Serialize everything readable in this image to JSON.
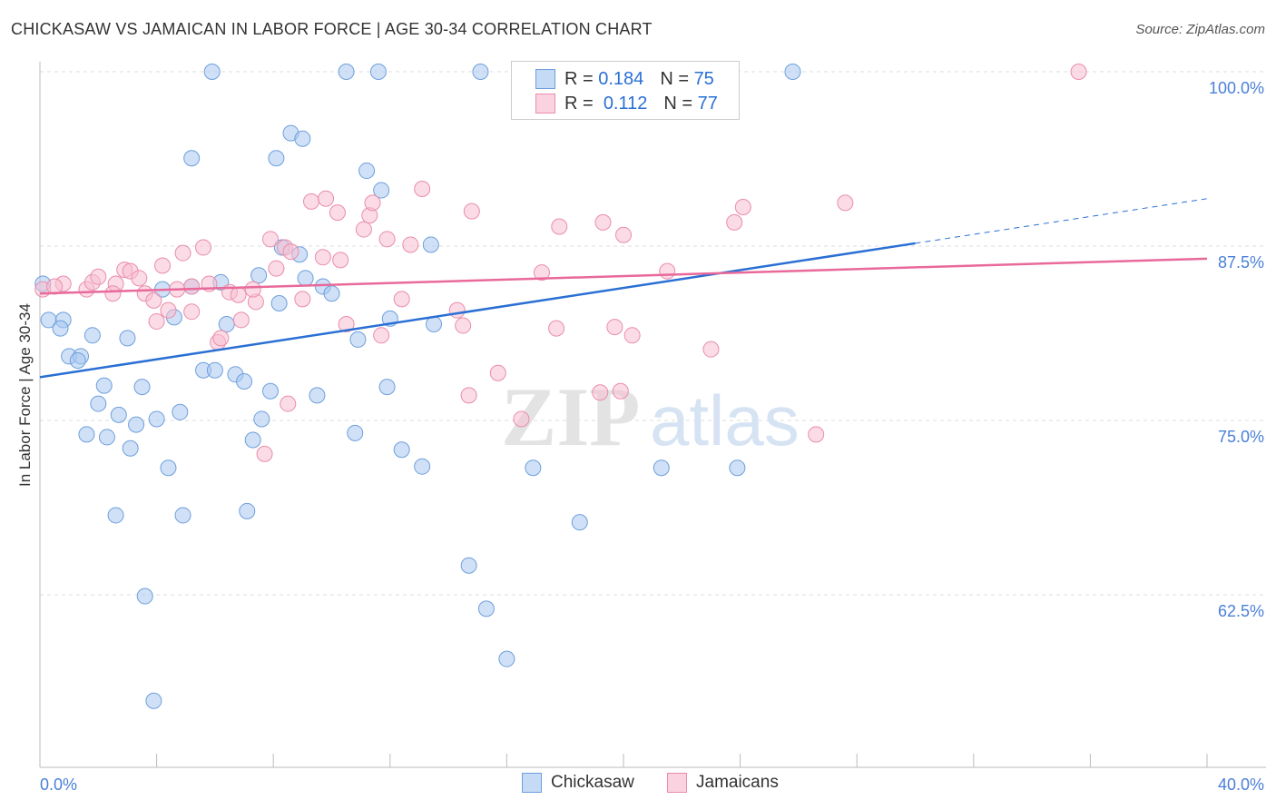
{
  "title": "CHICKASAW VS JAMAICAN IN LABOR FORCE | AGE 30-34 CORRELATION CHART",
  "source": "Source: ZipAtlas.com",
  "watermark": "ZIPatlas",
  "colors": {
    "blue_fill": "#a9c9f0",
    "blue_stroke": "#6e9fdc",
    "blue_line": "#2a6fd4",
    "pink_fill": "#f7bfd2",
    "pink_stroke": "#e98daa",
    "pink_line": "#e8699a",
    "tick": "#4a7fd8"
  },
  "legend": {
    "r_label": "R =",
    "n_label": "N =",
    "items": [
      {
        "name": "Chickasaw",
        "r": "0.184",
        "n": "75"
      },
      {
        "name": "Jamaicans",
        "r": "0.112",
        "n": "77"
      }
    ]
  },
  "chart_data": {
    "type": "scatter",
    "title": "CHICKASAW VS JAMAICAN IN LABOR FORCE | AGE 30-34 CORRELATION CHART",
    "xlabel": "",
    "ylabel": "In Labor Force | Age 30-34",
    "xlim": [
      0,
      40
    ],
    "ylim": [
      50,
      100
    ],
    "x_tick_labels": [
      "0.0%",
      "40.0%"
    ],
    "y_ticks": [
      100,
      87.5,
      75,
      62.5
    ],
    "y_tick_labels": [
      "100.0%",
      "87.5%",
      "75.0%",
      "62.5%"
    ],
    "grid": true,
    "legend_position": "top-center",
    "series": [
      {
        "name": "Chickasaw",
        "trend": {
          "x": [
            0,
            30,
            40
          ],
          "y": [
            78.1,
            87.7,
            90.9
          ],
          "solid_until": 30
        },
        "points": [
          [
            5.9,
            100
          ],
          [
            10.5,
            100
          ],
          [
            11.6,
            100
          ],
          [
            15.1,
            100
          ],
          [
            16.5,
            100
          ],
          [
            25.8,
            100
          ],
          [
            8.6,
            95.6
          ],
          [
            9.0,
            95.2
          ],
          [
            5.2,
            93.8
          ],
          [
            8.1,
            93.8
          ],
          [
            11.2,
            92.9
          ],
          [
            11.7,
            91.5
          ],
          [
            13.4,
            87.6
          ],
          [
            8.3,
            87.4
          ],
          [
            8.9,
            86.9
          ],
          [
            7.5,
            85.4
          ],
          [
            9.1,
            85.2
          ],
          [
            9.7,
            84.6
          ],
          [
            10.0,
            84.1
          ],
          [
            4.2,
            84.4
          ],
          [
            5.2,
            84.6
          ],
          [
            6.2,
            84.9
          ],
          [
            0.1,
            84.8
          ],
          [
            8.2,
            83.4
          ],
          [
            0.3,
            82.2
          ],
          [
            0.8,
            82.2
          ],
          [
            0.7,
            81.6
          ],
          [
            4.6,
            82.4
          ],
          [
            6.4,
            81.9
          ],
          [
            12.0,
            82.3
          ],
          [
            13.5,
            81.9
          ],
          [
            1.8,
            81.1
          ],
          [
            3.0,
            80.9
          ],
          [
            10.9,
            80.8
          ],
          [
            1.0,
            79.6
          ],
          [
            1.4,
            79.6
          ],
          [
            1.3,
            79.3
          ],
          [
            5.6,
            78.6
          ],
          [
            6.0,
            78.6
          ],
          [
            6.7,
            78.3
          ],
          [
            7.0,
            77.8
          ],
          [
            2.2,
            77.5
          ],
          [
            3.5,
            77.4
          ],
          [
            7.9,
            77.1
          ],
          [
            9.5,
            76.8
          ],
          [
            11.9,
            77.4
          ],
          [
            2.0,
            76.2
          ],
          [
            2.7,
            75.4
          ],
          [
            3.3,
            74.7
          ],
          [
            4.0,
            75.1
          ],
          [
            4.8,
            75.6
          ],
          [
            7.6,
            75.1
          ],
          [
            1.6,
            74.0
          ],
          [
            2.3,
            73.8
          ],
          [
            3.1,
            73.0
          ],
          [
            7.3,
            73.6
          ],
          [
            10.8,
            74.1
          ],
          [
            12.4,
            72.9
          ],
          [
            4.4,
            71.6
          ],
          [
            13.1,
            71.7
          ],
          [
            16.9,
            71.6
          ],
          [
            21.3,
            71.6
          ],
          [
            23.9,
            71.6
          ],
          [
            2.6,
            68.2
          ],
          [
            4.9,
            68.2
          ],
          [
            7.1,
            68.5
          ],
          [
            18.5,
            67.7
          ],
          [
            14.7,
            64.6
          ],
          [
            3.6,
            62.4
          ],
          [
            15.3,
            61.5
          ],
          [
            16.0,
            57.9
          ],
          [
            3.9,
            54.9
          ]
        ]
      },
      {
        "name": "Jamaicans",
        "trend": {
          "x": [
            0,
            40
          ],
          "y": [
            84.1,
            86.6
          ],
          "solid_until": 40
        },
        "points": [
          [
            35.6,
            100
          ],
          [
            0.1,
            84.4
          ],
          [
            0.8,
            84.8
          ],
          [
            0.5,
            84.6
          ],
          [
            1.6,
            84.4
          ],
          [
            1.8,
            84.9
          ],
          [
            2.0,
            85.3
          ],
          [
            2.6,
            84.8
          ],
          [
            2.5,
            84.1
          ],
          [
            2.9,
            85.8
          ],
          [
            3.1,
            85.7
          ],
          [
            3.4,
            85.2
          ],
          [
            3.6,
            84.1
          ],
          [
            4.2,
            86.1
          ],
          [
            4.9,
            87.0
          ],
          [
            5.6,
            87.4
          ],
          [
            5.8,
            84.8
          ],
          [
            5.2,
            84.6
          ],
          [
            4.7,
            84.4
          ],
          [
            3.9,
            83.6
          ],
          [
            4.4,
            82.9
          ],
          [
            5.2,
            82.8
          ],
          [
            4.0,
            82.1
          ],
          [
            6.1,
            80.6
          ],
          [
            6.2,
            80.9
          ],
          [
            6.9,
            82.2
          ],
          [
            6.5,
            84.2
          ],
          [
            6.8,
            84.0
          ],
          [
            7.4,
            83.5
          ],
          [
            7.3,
            84.4
          ],
          [
            8.1,
            85.9
          ],
          [
            7.9,
            88.0
          ],
          [
            8.4,
            87.4
          ],
          [
            8.6,
            87.1
          ],
          [
            9.0,
            83.7
          ],
          [
            9.7,
            86.7
          ],
          [
            10.3,
            86.5
          ],
          [
            9.3,
            90.7
          ],
          [
            9.8,
            90.9
          ],
          [
            10.2,
            89.9
          ],
          [
            11.1,
            88.7
          ],
          [
            11.3,
            89.7
          ],
          [
            11.4,
            90.6
          ],
          [
            11.9,
            88.0
          ],
          [
            12.7,
            87.6
          ],
          [
            13.1,
            91.6
          ],
          [
            14.8,
            90.0
          ],
          [
            17.8,
            88.9
          ],
          [
            19.3,
            89.2
          ],
          [
            20.0,
            88.3
          ],
          [
            23.8,
            89.2
          ],
          [
            24.1,
            90.3
          ],
          [
            27.6,
            90.6
          ],
          [
            17.2,
            85.6
          ],
          [
            21.5,
            85.7
          ],
          [
            12.4,
            83.7
          ],
          [
            14.3,
            82.9
          ],
          [
            14.5,
            81.8
          ],
          [
            10.5,
            81.9
          ],
          [
            11.7,
            81.1
          ],
          [
            17.7,
            81.6
          ],
          [
            19.7,
            81.7
          ],
          [
            20.3,
            81.1
          ],
          [
            23.0,
            80.1
          ],
          [
            15.7,
            78.4
          ],
          [
            14.7,
            76.8
          ],
          [
            16.5,
            75.1
          ],
          [
            19.2,
            77.0
          ],
          [
            19.9,
            77.1
          ],
          [
            26.6,
            74.0
          ],
          [
            7.7,
            72.6
          ],
          [
            8.5,
            76.2
          ]
        ]
      }
    ]
  }
}
